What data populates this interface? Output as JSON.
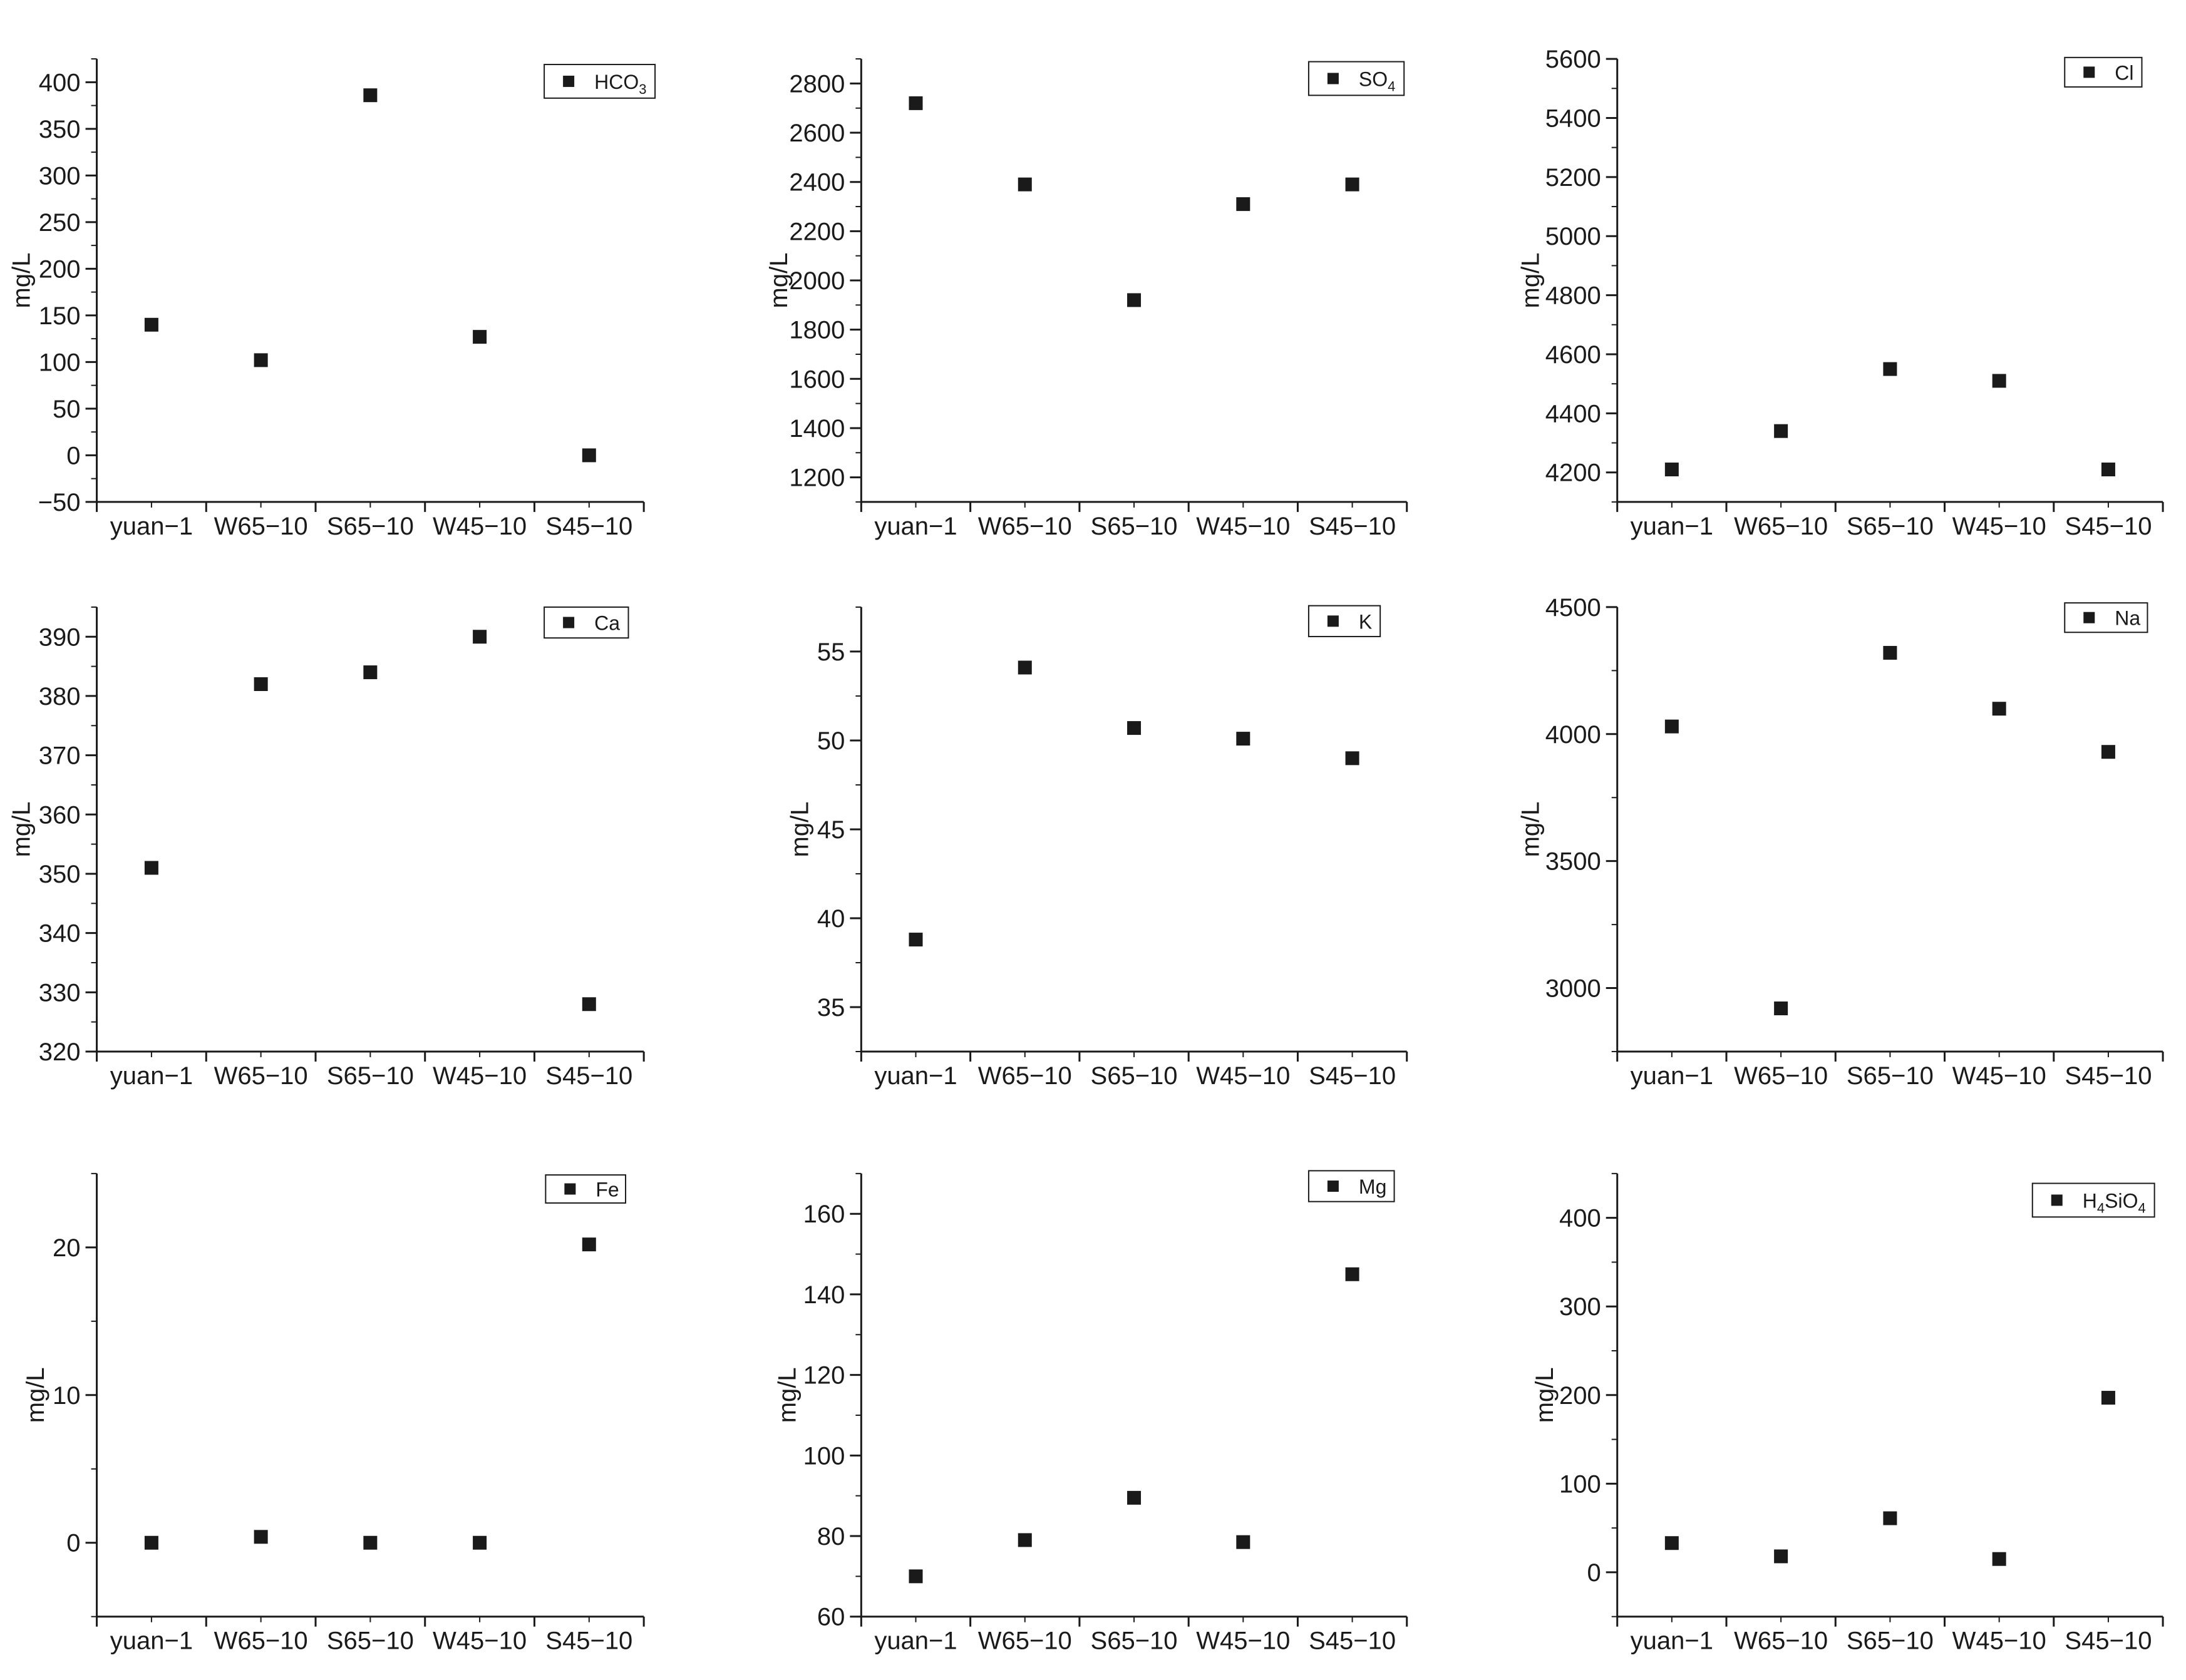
{
  "chart_data": [
    {
      "type": "scatter",
      "categories": [
        "yuan−1",
        "W65−10",
        "S65−10",
        "W45−10",
        "S45−10"
      ],
      "series": [
        {
          "name": "HCO3",
          "values": [
            140,
            102,
            386,
            127,
            0
          ]
        }
      ],
      "legend": {
        "main": "HCO",
        "sub": "3"
      },
      "ylabel": "mg/L",
      "ylim": [
        -50,
        425
      ],
      "yticks": [
        -50,
        0,
        50,
        100,
        150,
        200,
        250,
        300,
        350,
        400
      ],
      "ytick_labels": [
        "−50",
        "0",
        "50",
        "100",
        "150",
        "200",
        "250",
        "300",
        "350",
        "400"
      ],
      "minor_step": 25,
      "legend_position": "top-right",
      "grid": false
    },
    {
      "type": "scatter",
      "categories": [
        "yuan−1",
        "W65−10",
        "S65−10",
        "W45−10",
        "S45−10"
      ],
      "series": [
        {
          "name": "SO4",
          "values": [
            2720,
            2390,
            1920,
            2310,
            2390
          ]
        }
      ],
      "legend": {
        "main": "SO",
        "sub": "4"
      },
      "ylabel": "mg/L",
      "ylim": [
        1100,
        2900
      ],
      "yticks": [
        1200,
        1400,
        1600,
        1800,
        2000,
        2200,
        2400,
        2600,
        2800
      ],
      "ytick_labels": [
        "1200",
        "1400",
        "1600",
        "1800",
        "2000",
        "2200",
        "2400",
        "2600",
        "2800"
      ],
      "minor_step": 100,
      "legend_position": "top-right",
      "grid": false
    },
    {
      "type": "scatter",
      "categories": [
        "yuan−1",
        "W65−10",
        "S65−10",
        "W45−10",
        "S45−10"
      ],
      "series": [
        {
          "name": "Cl",
          "values": [
            4210,
            4340,
            4550,
            4510,
            4210
          ]
        }
      ],
      "legend": {
        "main": "Cl",
        "sub": ""
      },
      "ylabel": "mg/L",
      "ylim": [
        4100,
        5600
      ],
      "yticks": [
        4200,
        4400,
        4600,
        4800,
        5000,
        5200,
        5400,
        5600
      ],
      "ytick_labels": [
        "4200",
        "4400",
        "4600",
        "4800",
        "5000",
        "5200",
        "5400",
        "5600"
      ],
      "minor_step": 100,
      "legend_position": "top-right",
      "grid": false
    },
    {
      "type": "scatter",
      "categories": [
        "yuan−1",
        "W65−10",
        "S65−10",
        "W45−10",
        "S45−10"
      ],
      "series": [
        {
          "name": "Ca",
          "values": [
            351,
            382,
            384,
            390,
            328
          ]
        }
      ],
      "legend": {
        "main": "Ca",
        "sub": ""
      },
      "ylabel": "mg/L",
      "ylim": [
        320,
        395
      ],
      "yticks": [
        320,
        330,
        340,
        350,
        360,
        370,
        380,
        390
      ],
      "ytick_labels": [
        "320",
        "330",
        "340",
        "350",
        "360",
        "370",
        "380",
        "390"
      ],
      "minor_step": 5,
      "legend_position": "top-right",
      "grid": false
    },
    {
      "type": "scatter",
      "categories": [
        "yuan−1",
        "W65−10",
        "S65−10",
        "W45−10",
        "S45−10"
      ],
      "series": [
        {
          "name": "K",
          "values": [
            38.8,
            54.1,
            50.7,
            50.1,
            49.0
          ]
        }
      ],
      "legend": {
        "main": "K",
        "sub": ""
      },
      "ylabel": "mg/L",
      "ylim": [
        32.5,
        57.5
      ],
      "yticks": [
        35,
        40,
        45,
        50,
        55
      ],
      "ytick_labels": [
        "35",
        "40",
        "45",
        "50",
        "55"
      ],
      "minor_step": 2.5,
      "legend_position": "top-right",
      "grid": false
    },
    {
      "type": "scatter",
      "categories": [
        "yuan−1",
        "W65−10",
        "S65−10",
        "W45−10",
        "S45−10"
      ],
      "series": [
        {
          "name": "Na",
          "values": [
            4030,
            2920,
            4320,
            4100,
            3930
          ]
        }
      ],
      "legend": {
        "main": "Na",
        "sub": ""
      },
      "ylabel": "mg/L",
      "ylim": [
        2750,
        4500
      ],
      "yticks": [
        3000,
        3500,
        4000,
        4500
      ],
      "ytick_labels": [
        "3000",
        "3500",
        "4000",
        "4500"
      ],
      "minor_step": 250,
      "legend_position": "top-right",
      "grid": false
    },
    {
      "type": "scatter",
      "categories": [
        "yuan−1",
        "W65−10",
        "S65−10",
        "W45−10",
        "S45−10"
      ],
      "series": [
        {
          "name": "Fe",
          "values": [
            0.0,
            0.4,
            0.0,
            0.0,
            20.2
          ]
        }
      ],
      "legend": {
        "main": "Fe",
        "sub": ""
      },
      "ylabel": "mg/L",
      "ylim": [
        -5,
        25
      ],
      "yticks": [
        0,
        10,
        20
      ],
      "ytick_labels": [
        "0",
        "10",
        "20"
      ],
      "minor_step": 5,
      "legend_position": "top-right",
      "grid": false
    },
    {
      "type": "scatter",
      "categories": [
        "yuan−1",
        "W65−10",
        "S65−10",
        "W45−10",
        "S45−10"
      ],
      "series": [
        {
          "name": "Mg",
          "values": [
            70,
            79,
            89.5,
            78.5,
            145
          ]
        }
      ],
      "legend": {
        "main": "Mg",
        "sub": ""
      },
      "ylabel": "mg/L",
      "ylim": [
        60,
        170
      ],
      "yticks": [
        60,
        80,
        100,
        120,
        140,
        160
      ],
      "ytick_labels": [
        "60",
        "80",
        "100",
        "120",
        "140",
        "160"
      ],
      "minor_step": 10,
      "legend_position": "top-right",
      "grid": false
    },
    {
      "type": "scatter",
      "categories": [
        "yuan−1",
        "W65−10",
        "S65−10",
        "W45−10",
        "S45−10"
      ],
      "series": [
        {
          "name": "H4SiO4",
          "values": [
            33,
            18,
            61,
            15,
            197
          ]
        }
      ],
      "legend": {
        "main": "H",
        "sub": "4",
        "main2": "SiO",
        "sub2": "4"
      },
      "ylabel": "mg/L",
      "ylim": [
        -50,
        450
      ],
      "yticks": [
        0,
        100,
        200,
        300,
        400
      ],
      "ytick_labels": [
        "0",
        "100",
        "200",
        "300",
        "400"
      ],
      "minor_step": 50,
      "legend_position": "top-right",
      "grid": false
    }
  ],
  "colors": {
    "marker": "#1a1a1a",
    "axis": "#1a1a1a",
    "background": "#ffffff"
  }
}
